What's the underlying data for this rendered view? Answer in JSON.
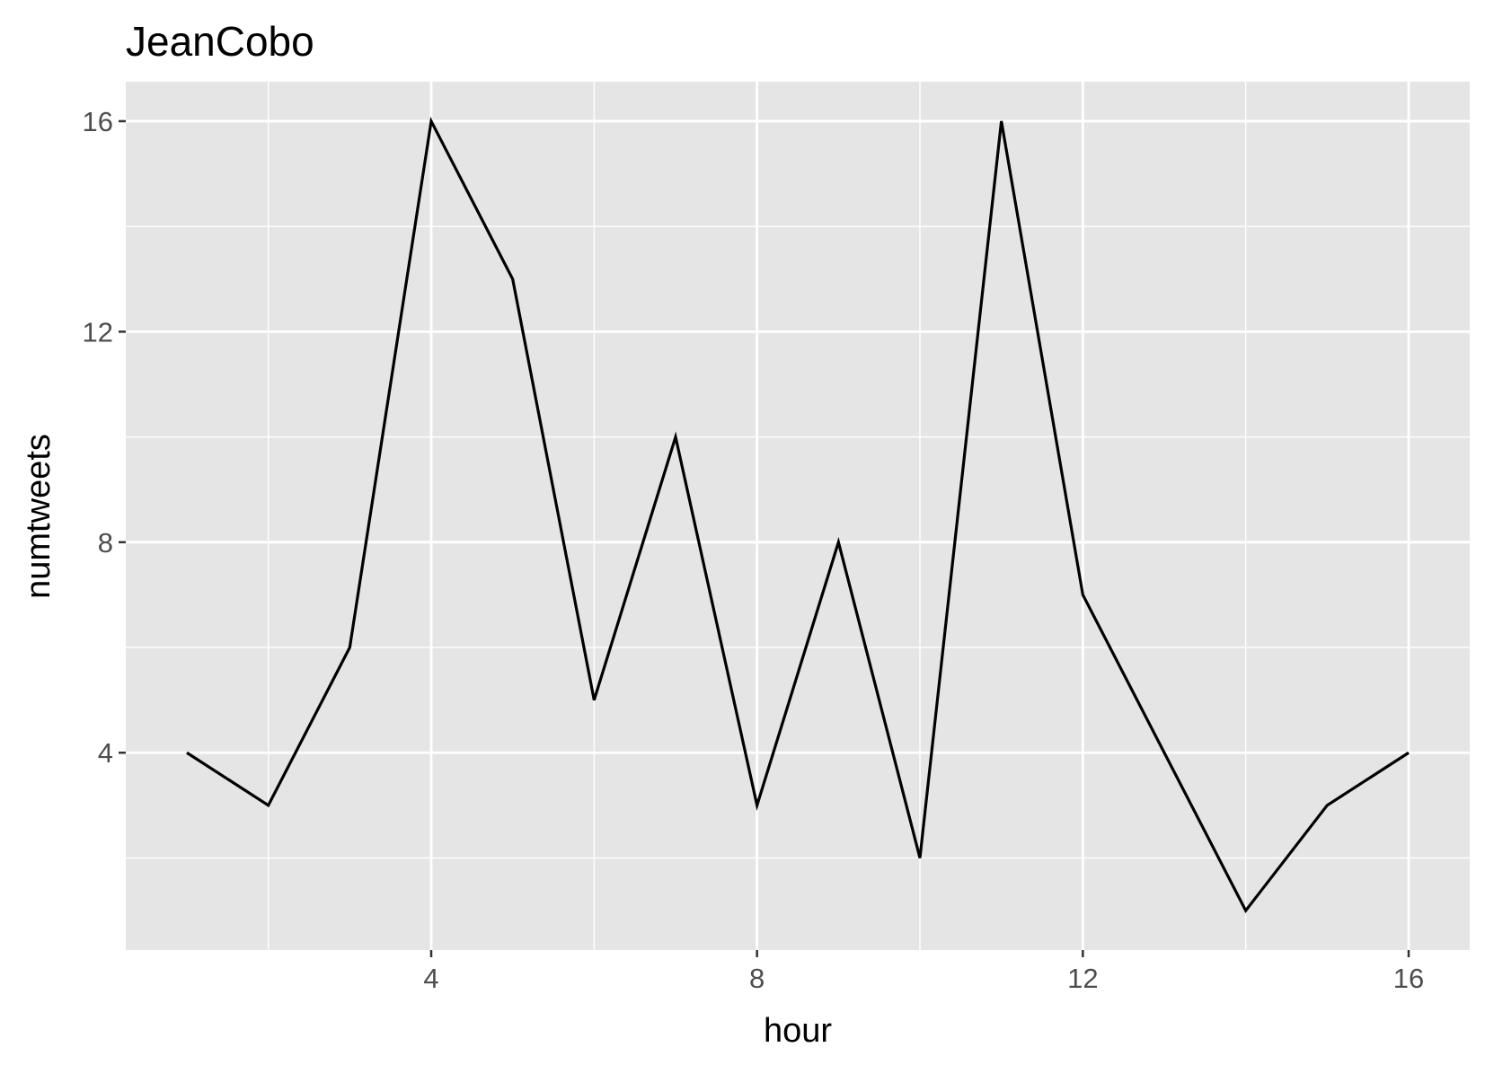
{
  "chart_data": {
    "type": "line",
    "title": "JeanCobo",
    "xlabel": "hour",
    "ylabel": "numtweets",
    "xlim": [
      0.25,
      16.75
    ],
    "ylim": [
      0.25,
      16.75
    ],
    "x_ticks": [
      4,
      8,
      12,
      16
    ],
    "x_tick_labels": [
      "4",
      "8",
      "12",
      "16"
    ],
    "x_minor_ticks": [
      2,
      6,
      10,
      14
    ],
    "y_ticks": [
      4,
      8,
      12,
      16
    ],
    "y_tick_labels": [
      "4",
      "8",
      "12",
      "16"
    ],
    "y_minor_ticks": [
      2,
      6,
      10,
      14
    ],
    "grid": true,
    "legend": "none",
    "series": [
      {
        "x": [
          1,
          2,
          3,
          4,
          5,
          6,
          7,
          8,
          9,
          10,
          11,
          12,
          13,
          14,
          15,
          16
        ],
        "y": [
          4,
          3,
          6,
          16,
          13,
          5,
          10,
          3,
          8,
          2,
          16,
          7,
          4,
          1,
          3,
          4
        ]
      }
    ],
    "colors": {
      "panel_background": "#e5e5e5",
      "grid": "#ffffff",
      "line": "#000000",
      "tick_label": "#4d4d4d",
      "tick_mark": "#333333"
    }
  }
}
